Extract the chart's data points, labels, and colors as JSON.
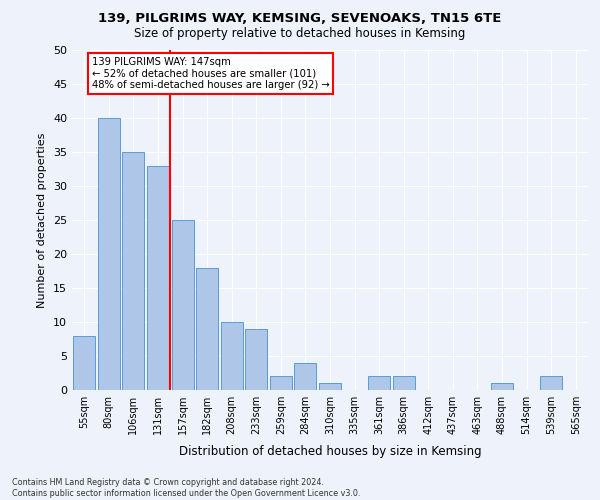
{
  "title1": "139, PILGRIMS WAY, KEMSING, SEVENOAKS, TN15 6TE",
  "title2": "Size of property relative to detached houses in Kemsing",
  "xlabel": "Distribution of detached houses by size in Kemsing",
  "ylabel": "Number of detached properties",
  "categories": [
    "55sqm",
    "80sqm",
    "106sqm",
    "131sqm",
    "157sqm",
    "182sqm",
    "208sqm",
    "233sqm",
    "259sqm",
    "284sqm",
    "310sqm",
    "335sqm",
    "361sqm",
    "386sqm",
    "412sqm",
    "437sqm",
    "463sqm",
    "488sqm",
    "514sqm",
    "539sqm",
    "565sqm"
  ],
  "values": [
    8,
    40,
    35,
    33,
    25,
    18,
    10,
    9,
    2,
    4,
    1,
    0,
    2,
    2,
    0,
    0,
    0,
    1,
    0,
    2,
    0
  ],
  "bar_color": "#aec6e8",
  "bar_edge_color": "#5b9bd5",
  "vline_x": 3.5,
  "vline_color": "red",
  "annotation_text": "139 PILGRIMS WAY: 147sqm\n← 52% of detached houses are smaller (101)\n48% of semi-detached houses are larger (92) →",
  "annotation_box_color": "white",
  "annotation_box_edge_color": "red",
  "ylim": [
    0,
    50
  ],
  "yticks": [
    0,
    5,
    10,
    15,
    20,
    25,
    30,
    35,
    40,
    45,
    50
  ],
  "footer1": "Contains HM Land Registry data © Crown copyright and database right 2024.",
  "footer2": "Contains public sector information licensed under the Open Government Licence v3.0.",
  "bg_color": "#eef2fa",
  "grid_color": "white"
}
